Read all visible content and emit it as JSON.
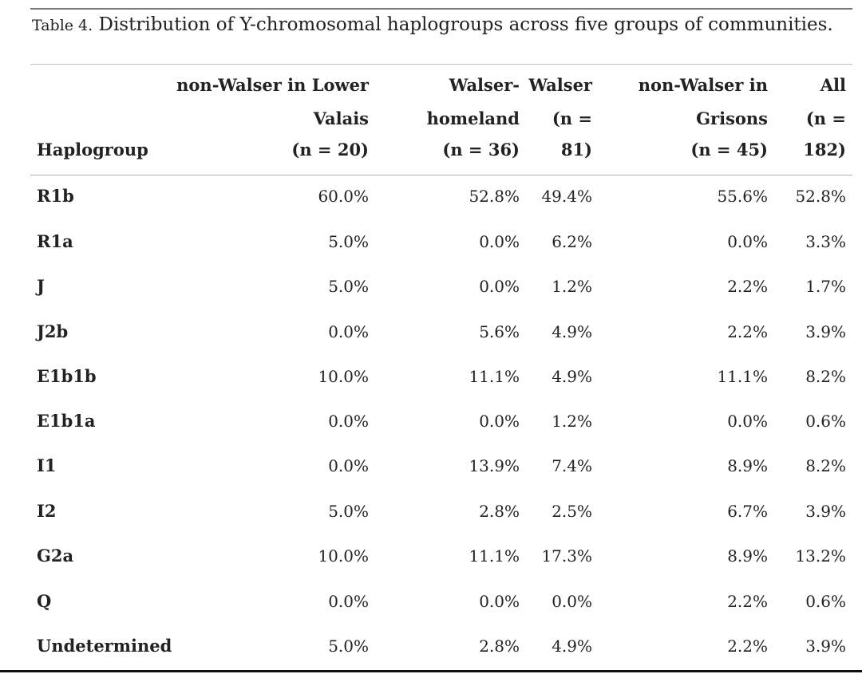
{
  "caption": {
    "label": "Table 4.",
    "text": "Distribution of Y-chromosomal haplogroups across five groups of communities."
  },
  "header": {
    "haplogroup": "Haplogroup",
    "col1": [
      "non-Walser in Lower",
      "Valais",
      "(n = 20)"
    ],
    "col2": [
      "Walser-",
      "homeland",
      "(n = 36)"
    ],
    "col3": [
      "Walser",
      "(n =",
      "81)"
    ],
    "col4": [
      "non-Walser in",
      "Grisons",
      "(n = 45)"
    ],
    "col5": [
      "All",
      "(n =",
      "182)"
    ]
  },
  "rows": [
    {
      "name": "R1b",
      "v": [
        "60.0%",
        "52.8%",
        "49.4%",
        "55.6%",
        "52.8%"
      ]
    },
    {
      "name": "R1a",
      "v": [
        "5.0%",
        "0.0%",
        "6.2%",
        "0.0%",
        "3.3%"
      ]
    },
    {
      "name": "J",
      "v": [
        "5.0%",
        "0.0%",
        "1.2%",
        "2.2%",
        "1.7%"
      ]
    },
    {
      "name": "J2b",
      "v": [
        "0.0%",
        "5.6%",
        "4.9%",
        "2.2%",
        "3.9%"
      ]
    },
    {
      "name": "E1b1b",
      "v": [
        "10.0%",
        "11.1%",
        "4.9%",
        "11.1%",
        "8.2%"
      ]
    },
    {
      "name": "E1b1a",
      "v": [
        "0.0%",
        "0.0%",
        "1.2%",
        "0.0%",
        "0.6%"
      ]
    },
    {
      "name": "I1",
      "v": [
        "0.0%",
        "13.9%",
        "7.4%",
        "8.9%",
        "8.2%"
      ]
    },
    {
      "name": "I2",
      "v": [
        "5.0%",
        "2.8%",
        "2.5%",
        "6.7%",
        "3.9%"
      ]
    },
    {
      "name": "G2a",
      "v": [
        "10.0%",
        "11.1%",
        "17.3%",
        "8.9%",
        "13.2%"
      ]
    },
    {
      "name": "Q",
      "v": [
        "0.0%",
        "0.0%",
        "0.0%",
        "2.2%",
        "0.6%"
      ]
    },
    {
      "name": "Undetermined",
      "v": [
        "5.0%",
        "2.8%",
        "4.9%",
        "2.2%",
        "3.9%"
      ]
    }
  ]
}
